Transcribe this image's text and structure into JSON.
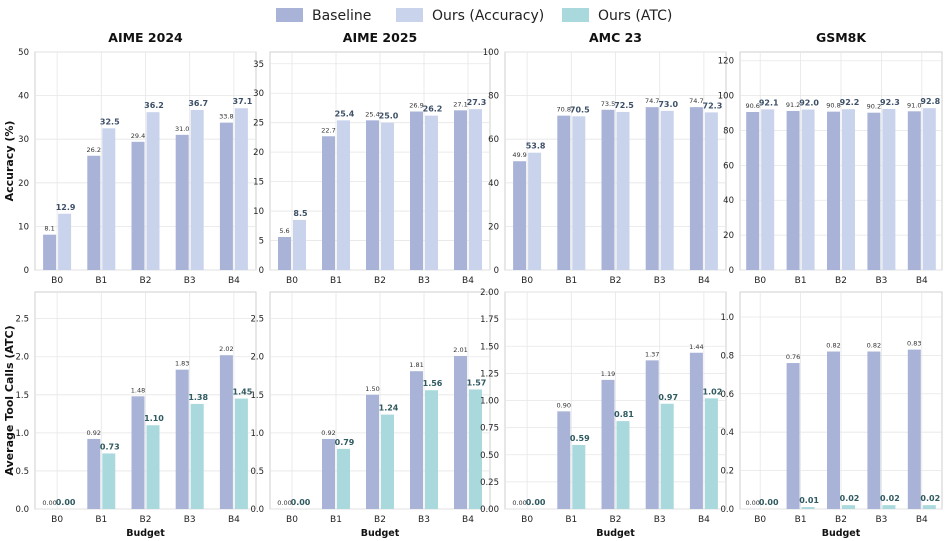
{
  "legend": {
    "items": [
      {
        "label": "Baseline",
        "color": "#a9b3d8"
      },
      {
        "label": "Ours (Accuracy)",
        "color": "#c9d4ec"
      },
      {
        "label": "Ours (ATC)",
        "color": "#a9d9dd"
      }
    ]
  },
  "colors": {
    "baseline": "#a9b3d8",
    "ours_accuracy": "#c9d4ec",
    "ours_atc": "#a9d9dd",
    "bold_label": "#3d5068",
    "bold_label_atc": "#2f5a60",
    "grid": "#e6e6e6",
    "frame": "#cfcfcf"
  },
  "chart_data": [
    {
      "type": "bar",
      "panel": "top",
      "title": "AIME 2024",
      "ylabel": "Accuracy (%)",
      "xlabel": "",
      "categories": [
        "B0",
        "B1",
        "B2",
        "B3",
        "B4"
      ],
      "ylim": [
        0,
        50
      ],
      "yticks": [
        0,
        10,
        20,
        30,
        40,
        50
      ],
      "tick_format": "int",
      "series": [
        {
          "name": "Baseline",
          "values": [
            8.1,
            26.2,
            29.4,
            31.0,
            33.8
          ],
          "labels": [
            "8.1",
            "26.2",
            "29.4",
            "31.0",
            "33.8"
          ]
        },
        {
          "name": "Ours (Accuracy)",
          "values": [
            12.9,
            32.5,
            36.2,
            36.7,
            37.1
          ],
          "labels": [
            "12.9",
            "32.5",
            "36.2",
            "36.7",
            "37.1"
          ]
        }
      ]
    },
    {
      "type": "bar",
      "panel": "top",
      "title": "AIME 2025",
      "ylabel": "",
      "xlabel": "",
      "categories": [
        "B0",
        "B1",
        "B2",
        "B3",
        "B4"
      ],
      "ylim": [
        0,
        37
      ],
      "yticks": [
        0,
        5,
        10,
        15,
        20,
        25,
        30,
        35
      ],
      "tick_format": "int",
      "series": [
        {
          "name": "Baseline",
          "values": [
            5.6,
            22.7,
            25.4,
            26.9,
            27.1
          ],
          "labels": [
            "5.6",
            "22.7",
            "25.4",
            "26.9",
            "27.1"
          ]
        },
        {
          "name": "Ours (Accuracy)",
          "values": [
            8.5,
            25.4,
            25.0,
            26.2,
            27.3
          ],
          "labels": [
            "8.5",
            "25.4",
            "25.0",
            "26.2",
            "27.3"
          ]
        }
      ]
    },
    {
      "type": "bar",
      "panel": "top",
      "title": "AMC 23",
      "ylabel": "",
      "xlabel": "",
      "categories": [
        "B0",
        "B1",
        "B2",
        "B3",
        "B4"
      ],
      "ylim": [
        0,
        100
      ],
      "yticks": [
        0,
        20,
        40,
        60,
        80,
        100
      ],
      "tick_format": "int",
      "series": [
        {
          "name": "Baseline",
          "values": [
            49.9,
            70.8,
            73.5,
            74.7,
            74.7
          ],
          "labels": [
            "49.9",
            "70.8",
            "73.5",
            "74.7",
            "74.7"
          ]
        },
        {
          "name": "Ours (Accuracy)",
          "values": [
            53.8,
            70.5,
            72.5,
            73.0,
            72.3
          ],
          "labels": [
            "53.8",
            "70.5",
            "72.5",
            "73.0",
            "72.3"
          ]
        }
      ]
    },
    {
      "type": "bar",
      "panel": "top",
      "title": "GSM8K",
      "ylabel": "",
      "xlabel": "",
      "categories": [
        "B0",
        "B1",
        "B2",
        "B3",
        "B4"
      ],
      "ylim": [
        0,
        125
      ],
      "yticks": [
        0,
        20,
        40,
        60,
        80,
        100,
        120
      ],
      "tick_format": "int",
      "series": [
        {
          "name": "Baseline",
          "values": [
            90.6,
            91.2,
            90.8,
            90.2,
            91.0
          ],
          "labels": [
            "90.6",
            "91.2",
            "90.8",
            "90.2",
            "91.0"
          ]
        },
        {
          "name": "Ours (Accuracy)",
          "values": [
            92.1,
            92.0,
            92.2,
            92.3,
            92.8
          ],
          "labels": [
            "92.1",
            "92.0",
            "92.2",
            "92.3",
            "92.8"
          ]
        }
      ]
    },
    {
      "type": "bar",
      "panel": "bottom",
      "title": "",
      "ylabel": "Average Tool Calls (ATC)",
      "xlabel": "Budget",
      "categories": [
        "B0",
        "B1",
        "B2",
        "B3",
        "B4"
      ],
      "ylim": [
        0,
        2.85
      ],
      "yticks": [
        0.0,
        0.5,
        1.0,
        1.5,
        2.0,
        2.5
      ],
      "tick_format": "1",
      "series": [
        {
          "name": "Baseline",
          "values": [
            0.0,
            0.92,
            1.48,
            1.83,
            2.02
          ],
          "labels": [
            "0.00",
            "0.92",
            "1.48",
            "1.83",
            "2.02"
          ]
        },
        {
          "name": "Ours (ATC)",
          "values": [
            0.0,
            0.73,
            1.1,
            1.38,
            1.45
          ],
          "labels": [
            "0.00",
            "0.73",
            "1.10",
            "1.38",
            "1.45"
          ]
        }
      ]
    },
    {
      "type": "bar",
      "panel": "bottom",
      "title": "",
      "ylabel": "",
      "xlabel": "Budget",
      "categories": [
        "B0",
        "B1",
        "B2",
        "B3",
        "B4"
      ],
      "ylim": [
        0,
        2.85
      ],
      "yticks": [
        0.0,
        0.5,
        1.0,
        1.5,
        2.0,
        2.5
      ],
      "tick_format": "1",
      "series": [
        {
          "name": "Baseline",
          "values": [
            0.0,
            0.92,
            1.5,
            1.81,
            2.01
          ],
          "labels": [
            "0.00",
            "0.92",
            "1.50",
            "1.81",
            "2.01"
          ]
        },
        {
          "name": "Ours (ATC)",
          "values": [
            0.0,
            0.79,
            1.24,
            1.56,
            1.57
          ],
          "labels": [
            "0.00",
            "0.79",
            "1.24",
            "1.56",
            "1.57"
          ]
        }
      ]
    },
    {
      "type": "bar",
      "panel": "bottom",
      "title": "",
      "ylabel": "",
      "xlabel": "Budget",
      "categories": [
        "B0",
        "B1",
        "B2",
        "B3",
        "B4"
      ],
      "ylim": [
        0,
        2.0
      ],
      "yticks": [
        0.0,
        0.25,
        0.5,
        0.75,
        1.0,
        1.25,
        1.5,
        1.75,
        2.0
      ],
      "tick_format": "2",
      "series": [
        {
          "name": "Baseline",
          "values": [
            0.0,
            0.9,
            1.19,
            1.37,
            1.44
          ],
          "labels": [
            "0.00",
            "0.90",
            "1.19",
            "1.37",
            "1.44"
          ]
        },
        {
          "name": "Ours (ATC)",
          "values": [
            0.0,
            0.59,
            0.81,
            0.97,
            1.02
          ],
          "labels": [
            "0.00",
            "0.59",
            "0.81",
            "0.97",
            "1.02"
          ]
        }
      ]
    },
    {
      "type": "bar",
      "panel": "bottom",
      "title": "",
      "ylabel": "",
      "xlabel": "Budget",
      "categories": [
        "B0",
        "B1",
        "B2",
        "B3",
        "B4"
      ],
      "ylim": [
        0,
        1.13
      ],
      "yticks": [
        0.0,
        0.2,
        0.4,
        0.6,
        0.8,
        1.0
      ],
      "tick_format": "1",
      "series": [
        {
          "name": "Baseline",
          "values": [
            0.0,
            0.76,
            0.82,
            0.82,
            0.83
          ],
          "labels": [
            "0.00",
            "0.76",
            "0.82",
            "0.82",
            "0.83"
          ]
        },
        {
          "name": "Ours (ATC)",
          "values": [
            0.0,
            0.01,
            0.02,
            0.02,
            0.02
          ],
          "labels": [
            "0.00",
            "0.01",
            "0.02",
            "0.02",
            "0.02"
          ]
        }
      ]
    }
  ]
}
